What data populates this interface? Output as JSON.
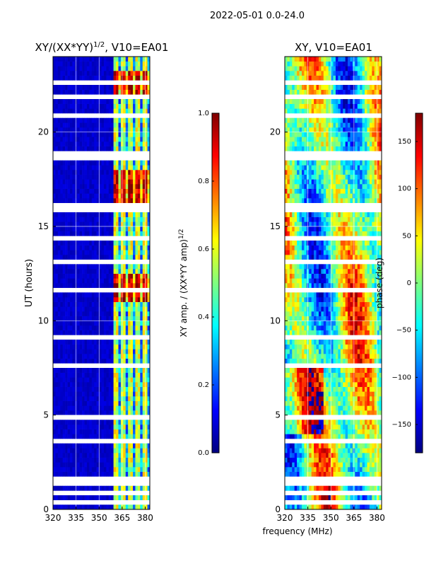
{
  "figure": {
    "suptitle": "2022-05-01 0.0-24.0",
    "shared_xlabel": "frequency (MHz)"
  },
  "colors": {
    "jet_stops": [
      "#00007f",
      "#0000ff",
      "#007fff",
      "#00ffff",
      "#7fff7f",
      "#ffff00",
      "#ff7f00",
      "#ff0000",
      "#7f0000"
    ],
    "frame": "#000000",
    "grid": "#ffffff",
    "background": "#ffffff"
  },
  "chart_data": [
    {
      "type": "heatmap",
      "title_prefix": "XY/(XX*YY)",
      "title_exp": "1/2",
      "title_suffix": ", V10=EA01",
      "xlabel": "",
      "ylabel": "UT (hours)",
      "xlim": [
        320,
        383
      ],
      "ylim": [
        0,
        24
      ],
      "x_ticks": [
        320,
        335,
        350,
        365,
        380
      ],
      "y_ticks": [
        0,
        5,
        10,
        15,
        20
      ],
      "grid": true,
      "note": "Normalized XY amplitude; low (~0.05) below 360 MHz, bright striped channels 360-383 MHz with peaks near 11-12.5, 16-18 and 22-23 UT.",
      "colorbar": {
        "label_prefix": "XY amp. / (XX*YY amp)",
        "label_exp": "1/2",
        "range": [
          0.0,
          1.0
        ],
        "ticks": [
          "0.0",
          "0.2",
          "0.4",
          "0.6",
          "0.8",
          "1.0"
        ]
      }
    },
    {
      "type": "heatmap",
      "title": "XY, V10=EA01",
      "xlabel": "",
      "ylabel": "",
      "xlim": [
        320,
        383
      ],
      "ylim": [
        0,
        24
      ],
      "x_ticks": [
        320,
        335,
        350,
        365,
        380
      ],
      "y_ticks": [
        0,
        5,
        10,
        15,
        20
      ],
      "grid": true,
      "note": "XY phase in degrees spanning -180 to 180 with vertical banding across frequency.",
      "colorbar": {
        "label": "phase (deg)",
        "range": [
          -180,
          180
        ],
        "ticks": [
          "−150",
          "−100",
          "−50",
          "0",
          "50",
          "100",
          "150"
        ]
      }
    }
  ]
}
